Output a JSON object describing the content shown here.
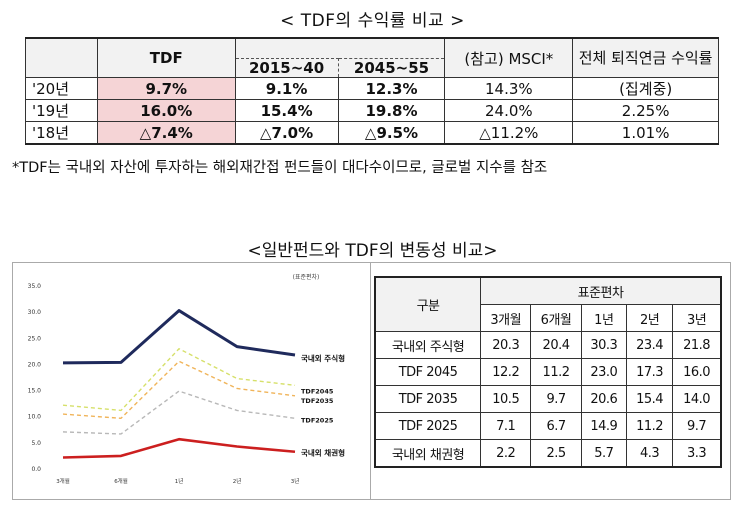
{
  "returns": {
    "title": "< TDF의 수익률 비교 >",
    "headers": {
      "tdf": "TDF",
      "sub1": "2015~40",
      "sub2": "2045~55",
      "msci": "(참고) MSCI*",
      "pension": "전체 퇴직연금 수익률"
    },
    "rows": [
      {
        "year": "'20년",
        "tdf": "9.7%",
        "sub1": "9.1%",
        "sub2": "12.3%",
        "msci": "14.3%",
        "pension": "(집계중)"
      },
      {
        "year": "'19년",
        "tdf": "16.0%",
        "sub1": "15.4%",
        "sub2": "19.8%",
        "msci": "24.0%",
        "pension": "2.25%"
      },
      {
        "year": "'18년",
        "tdf": "△7.4%",
        "sub1": "△7.0%",
        "sub2": "△9.5%",
        "msci": "△11.2%",
        "pension": "1.01%"
      }
    ],
    "note": "*TDF는 국내외 자산에 투자하는 해외재간접 펀드들이 대다수이므로, 글로벌 지수를 참조"
  },
  "volatility": {
    "title": "<일반펀드와 TDF의 변동성 비교>",
    "table": {
      "header_group": "구분",
      "header_top": "표준편차",
      "periods": [
        "3개월",
        "6개월",
        "1년",
        "2년",
        "3년"
      ],
      "rows": [
        {
          "name": "국내외 주식형",
          "values": [
            "20.3",
            "20.4",
            "30.3",
            "23.4",
            "21.8"
          ]
        },
        {
          "name": "TDF 2045",
          "values": [
            "12.2",
            "11.2",
            "23.0",
            "17.3",
            "16.0"
          ]
        },
        {
          "name": "TDF 2035",
          "values": [
            "10.5",
            "9.7",
            "20.6",
            "15.4",
            "14.0"
          ]
        },
        {
          "name": "TDF 2025",
          "values": [
            "7.1",
            "6.7",
            "14.9",
            "11.2",
            "9.7"
          ]
        },
        {
          "name": "국내외 채권형",
          "values": [
            "2.2",
            "2.5",
            "5.7",
            "4.3",
            "3.3"
          ]
        }
      ]
    }
  },
  "chart_data": {
    "type": "line",
    "title": "",
    "unit_label": "(표준편차)",
    "categories": [
      "3개월",
      "6개월",
      "1년",
      "2년",
      "3년"
    ],
    "ylim": [
      0,
      35
    ],
    "yticks": [
      "0.0",
      "5.0",
      "10.0",
      "15.0",
      "20.0",
      "25.0",
      "30.0",
      "35.0"
    ],
    "grid": false,
    "series": [
      {
        "name": "국내외 주식형",
        "values": [
          20.3,
          20.4,
          30.3,
          23.4,
          21.8
        ],
        "color": "#1f2a5c",
        "style": "solid"
      },
      {
        "name": "TDF2045",
        "values": [
          12.2,
          11.2,
          23.0,
          17.3,
          16.0
        ],
        "color": "#d6e06a",
        "style": "dashed"
      },
      {
        "name": "TDF2035",
        "values": [
          10.5,
          9.7,
          20.6,
          15.4,
          14.0
        ],
        "color": "#f0b45a",
        "style": "dashed"
      },
      {
        "name": "TDF2025",
        "values": [
          7.1,
          6.7,
          14.9,
          11.2,
          9.7
        ],
        "color": "#b8b8b8",
        "style": "dashed"
      },
      {
        "name": "국내외 채권형",
        "values": [
          2.2,
          2.5,
          5.7,
          4.3,
          3.3
        ],
        "color": "#cc1f1f",
        "style": "solid"
      }
    ]
  }
}
